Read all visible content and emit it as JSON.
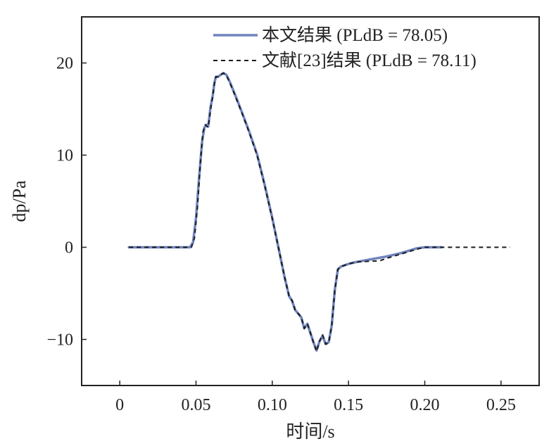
{
  "chart_data": {
    "type": "line",
    "xlabel": "时间/s",
    "ylabel": "dp/Pa",
    "xlim": [
      -0.025,
      0.275
    ],
    "ylim": [
      -15,
      25
    ],
    "x_ticks": [
      0,
      0.05,
      0.1,
      0.15,
      0.2,
      0.25
    ],
    "x_tick_labels": [
      "0",
      "0.05",
      "0.10",
      "0.15",
      "0.20",
      "0.25"
    ],
    "y_ticks": [
      -10,
      0,
      10,
      20
    ],
    "y_tick_labels": [
      "−10",
      "0",
      "10",
      "20"
    ],
    "grid": false,
    "legend_position": "top-right",
    "series": [
      {
        "name": "本文结果 (PLdB = 78.05)",
        "color": "#7084bd",
        "style": "solid",
        "points": [
          [
            0.006,
            0
          ],
          [
            0.046,
            0
          ],
          [
            0.048,
            0.5
          ],
          [
            0.05,
            3.2
          ],
          [
            0.052,
            7.5
          ],
          [
            0.054,
            11.5
          ],
          [
            0.0555,
            13.0
          ],
          [
            0.057,
            13.3
          ],
          [
            0.058,
            13.1
          ],
          [
            0.0595,
            15.2
          ],
          [
            0.061,
            16.5
          ],
          [
            0.062,
            17.8
          ],
          [
            0.063,
            18.5
          ],
          [
            0.0645,
            18.5
          ],
          [
            0.066,
            18.7
          ],
          [
            0.068,
            18.9
          ],
          [
            0.07,
            18.7
          ],
          [
            0.072,
            18.0
          ],
          [
            0.075,
            16.8
          ],
          [
            0.08,
            14.7
          ],
          [
            0.085,
            12.5
          ],
          [
            0.09,
            10.1
          ],
          [
            0.095,
            6.8
          ],
          [
            0.1,
            3.2
          ],
          [
            0.104,
            0
          ],
          [
            0.108,
            -3.2
          ],
          [
            0.111,
            -5.3
          ],
          [
            0.113,
            -5.8
          ],
          [
            0.115,
            -6.8
          ],
          [
            0.117,
            -7.2
          ],
          [
            0.119,
            -7.6
          ],
          [
            0.121,
            -8.8
          ],
          [
            0.123,
            -8.3
          ],
          [
            0.125,
            -9.3
          ],
          [
            0.127,
            -10.3
          ],
          [
            0.129,
            -11.2
          ],
          [
            0.131,
            -10.2
          ],
          [
            0.133,
            -9.6
          ],
          [
            0.135,
            -10.5
          ],
          [
            0.137,
            -10.3
          ],
          [
            0.139,
            -8.5
          ],
          [
            0.141,
            -4.6
          ],
          [
            0.143,
            -2.4
          ],
          [
            0.145,
            -2.1
          ],
          [
            0.15,
            -1.8
          ],
          [
            0.155,
            -1.6
          ],
          [
            0.165,
            -1.3
          ],
          [
            0.175,
            -1.0
          ],
          [
            0.185,
            -0.6
          ],
          [
            0.195,
            -0.1
          ],
          [
            0.2,
            0
          ],
          [
            0.211,
            0
          ]
        ]
      },
      {
        "name": "文献[23]结果 (PLdB = 78.11)",
        "color": "#1a1a1a",
        "style": "dashed",
        "points": [
          [
            0.006,
            0
          ],
          [
            0.047,
            0
          ],
          [
            0.049,
            1.0
          ],
          [
            0.051,
            4.5
          ],
          [
            0.053,
            9.5
          ],
          [
            0.0545,
            12.5
          ],
          [
            0.056,
            13.3
          ],
          [
            0.058,
            13.0
          ],
          [
            0.0595,
            14.9
          ],
          [
            0.061,
            16.4
          ],
          [
            0.062,
            17.7
          ],
          [
            0.063,
            18.5
          ],
          [
            0.0645,
            18.5
          ],
          [
            0.066,
            18.7
          ],
          [
            0.068,
            18.9
          ],
          [
            0.07,
            18.6
          ],
          [
            0.072,
            17.9
          ],
          [
            0.075,
            16.7
          ],
          [
            0.08,
            14.6
          ],
          [
            0.085,
            12.4
          ],
          [
            0.09,
            10.0
          ],
          [
            0.095,
            6.7
          ],
          [
            0.1,
            3.1
          ],
          [
            0.104,
            0
          ],
          [
            0.108,
            -3.2
          ],
          [
            0.111,
            -5.3
          ],
          [
            0.113,
            -5.8
          ],
          [
            0.115,
            -6.8
          ],
          [
            0.117,
            -7.2
          ],
          [
            0.119,
            -7.6
          ],
          [
            0.121,
            -8.8
          ],
          [
            0.123,
            -8.3
          ],
          [
            0.125,
            -9.3
          ],
          [
            0.127,
            -10.3
          ],
          [
            0.129,
            -11.3
          ],
          [
            0.131,
            -10.2
          ],
          [
            0.133,
            -9.5
          ],
          [
            0.135,
            -10.5
          ],
          [
            0.137,
            -10.4
          ],
          [
            0.139,
            -8.5
          ],
          [
            0.141,
            -4.7
          ],
          [
            0.143,
            -2.4
          ],
          [
            0.145,
            -2.1
          ],
          [
            0.15,
            -1.8
          ],
          [
            0.155,
            -1.6
          ],
          [
            0.165,
            -1.5
          ],
          [
            0.17,
            -1.5
          ],
          [
            0.175,
            -1.2
          ],
          [
            0.185,
            -0.7
          ],
          [
            0.195,
            -0.2
          ],
          [
            0.2,
            0
          ],
          [
            0.256,
            0
          ]
        ]
      }
    ]
  }
}
